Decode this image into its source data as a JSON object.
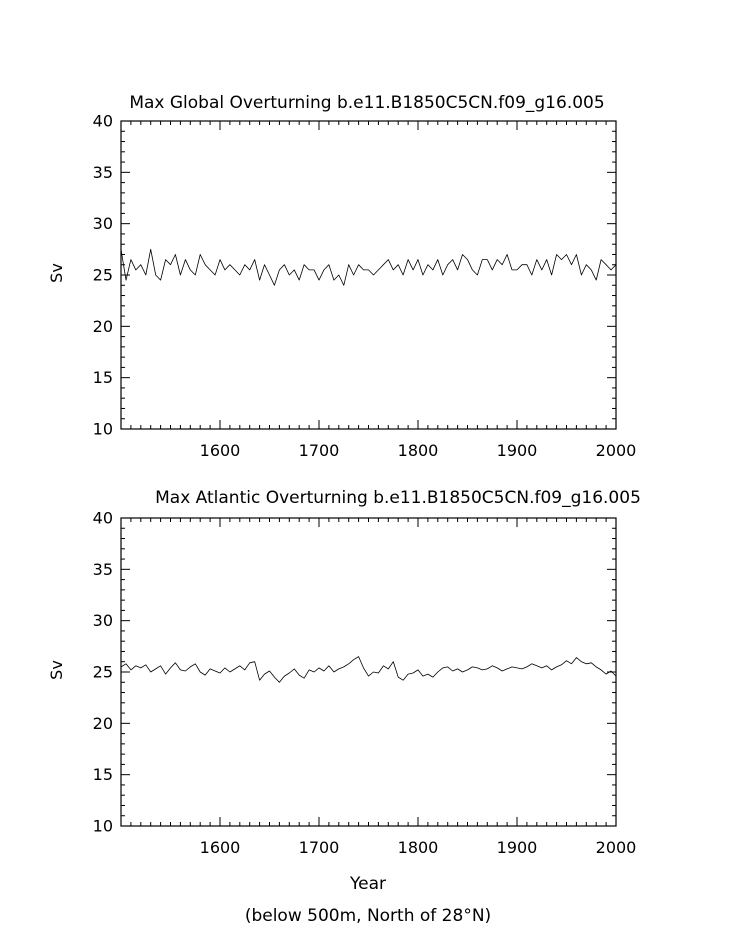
{
  "chart_data": [
    {
      "type": "line",
      "title": "Max Global Overturning b.e11.B1850C5CN.f09_g16.005",
      "xlabel": "",
      "ylabel": "Sv",
      "xlim": [
        1500,
        2000
      ],
      "ylim": [
        10,
        40
      ],
      "xticks": [
        1600,
        1700,
        1800,
        1900,
        2000
      ],
      "yticks": [
        10,
        15,
        20,
        25,
        30,
        35,
        40
      ],
      "grid": false,
      "x_start": 1500,
      "x_step": 5,
      "series": [
        {
          "values": [
            27.5,
            24.5,
            26.5,
            25.5,
            26.0,
            25.0,
            27.5,
            25.0,
            24.5,
            26.5,
            26.0,
            27.0,
            25.0,
            26.5,
            25.5,
            25.0,
            27.0,
            26.0,
            25.5,
            25.0,
            26.5,
            25.5,
            26.0,
            25.5,
            25.0,
            26.0,
            25.5,
            26.5,
            24.5,
            26.0,
            25.0,
            24.0,
            25.5,
            26.0,
            25.0,
            25.5,
            24.5,
            26.0,
            25.5,
            25.5,
            24.5,
            25.5,
            26.0,
            24.5,
            25.0,
            24.0,
            26.0,
            25.0,
            26.0,
            25.5,
            25.5,
            25.0,
            25.5,
            26.0,
            26.5,
            25.5,
            26.0,
            25.0,
            26.5,
            25.5,
            26.5,
            25.0,
            26.0,
            25.5,
            26.5,
            25.0,
            26.0,
            26.5,
            25.5,
            27.0,
            26.5,
            25.5,
            25.0,
            26.5,
            26.5,
            25.5,
            26.5,
            26.0,
            27.0,
            25.5,
            25.5,
            26.0,
            26.0,
            25.0,
            26.5,
            25.5,
            26.5,
            25.0,
            27.0,
            26.5,
            27.0,
            26.0,
            27.0,
            25.0,
            26.0,
            25.5,
            24.5,
            26.5,
            26.0,
            25.5,
            26.0
          ]
        }
      ]
    },
    {
      "type": "line",
      "title": "Max Atlantic Overturning b.e11.B1850C5CN.f09_g16.005",
      "xlabel": "Year",
      "ylabel": "Sv",
      "subtitle": "(below 500m, North of 28°N)",
      "xlim": [
        1500,
        2000
      ],
      "ylim": [
        10,
        40
      ],
      "xticks": [
        1600,
        1700,
        1800,
        1900,
        2000
      ],
      "yticks": [
        10,
        15,
        20,
        25,
        30,
        35,
        40
      ],
      "grid": false,
      "x_start": 1500,
      "x_step": 5,
      "series": [
        {
          "values": [
            25.5,
            25.8,
            25.2,
            25.6,
            25.4,
            25.7,
            25.0,
            25.3,
            25.6,
            24.8,
            25.4,
            25.9,
            25.2,
            25.1,
            25.5,
            25.8,
            25.0,
            24.7,
            25.3,
            25.1,
            24.9,
            25.4,
            25.0,
            25.3,
            25.6,
            25.2,
            25.9,
            26.0,
            24.2,
            24.8,
            25.1,
            24.5,
            24.0,
            24.6,
            24.9,
            25.3,
            24.7,
            24.4,
            25.2,
            25.0,
            25.4,
            25.1,
            25.6,
            25.0,
            25.3,
            25.5,
            25.8,
            26.2,
            26.5,
            25.4,
            24.6,
            25.0,
            24.9,
            25.6,
            25.3,
            26.0,
            24.5,
            24.2,
            24.8,
            24.9,
            25.2,
            24.6,
            24.8,
            24.5,
            25.0,
            25.4,
            25.5,
            25.1,
            25.3,
            25.0,
            25.2,
            25.5,
            25.4,
            25.2,
            25.3,
            25.6,
            25.4,
            25.1,
            25.3,
            25.5,
            25.4,
            25.3,
            25.5,
            25.8,
            25.6,
            25.4,
            25.6,
            25.2,
            25.5,
            25.7,
            26.1,
            25.8,
            26.4,
            26.0,
            25.8,
            25.9,
            25.5,
            25.2,
            24.8,
            25.1,
            24.6
          ]
        }
      ]
    }
  ]
}
